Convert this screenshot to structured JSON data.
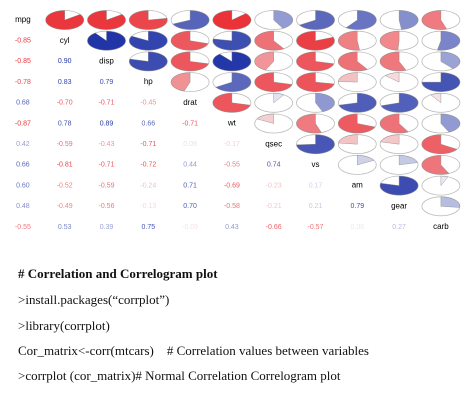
{
  "chart_data": {
    "type": "correlogram",
    "variables": [
      "mpg",
      "cyl",
      "disp",
      "hp",
      "drat",
      "wt",
      "qsec",
      "vs",
      "am",
      "gear",
      "carb"
    ],
    "values": [
      [
        -0.85
      ],
      [
        -0.85,
        0.9
      ],
      [
        -0.78,
        0.83,
        0.79
      ],
      [
        0.68,
        -0.7,
        -0.71,
        -0.45
      ],
      [
        -0.87,
        0.78,
        0.89,
        0.66,
        -0.71
      ],
      [
        0.42,
        -0.59,
        -0.43,
        -0.71,
        0.09,
        -0.17
      ],
      [
        0.66,
        -0.81,
        -0.71,
        -0.72,
        0.44,
        -0.55,
        0.74
      ],
      [
        0.6,
        -0.52,
        -0.59,
        -0.24,
        0.71,
        -0.69,
        -0.23,
        0.17
      ],
      [
        0.48,
        -0.49,
        -0.56,
        -0.13,
        0.7,
        -0.58,
        -0.21,
        0.21,
        0.79
      ],
      [
        -0.55,
        0.53,
        0.39,
        0.75,
        -0.09,
        0.43,
        -0.66,
        -0.57,
        0.06,
        0.27
      ]
    ],
    "value_labels": [
      [
        "-0.85"
      ],
      [
        "-0.85",
        "0.90"
      ],
      [
        "-0.78",
        "0.83",
        "0.79"
      ],
      [
        "0.68",
        "-0.70",
        "-0.71",
        "-0.45"
      ],
      [
        "-0.87",
        "0.78",
        "0.89",
        "0.66",
        "-0.71"
      ],
      [
        "0.42",
        "-0.59",
        "-0.43",
        "-0.71",
        "0.09",
        "-0.17"
      ],
      [
        "0.66",
        "-0.81",
        "-0.71",
        "-0.72",
        "0.44",
        "-0.55",
        "0.74"
      ],
      [
        "0.60",
        "-0.52",
        "-0.59",
        "-0.24",
        "0.71",
        "-0.69",
        "-0.23",
        "0.17"
      ],
      [
        "0.48",
        "-0.49",
        "-0.56",
        "-0.13",
        "0.70",
        "-0.58",
        "-0.21",
        "0.21",
        "0.79"
      ],
      [
        "-0.55",
        "0.53",
        "0.39",
        "0.75",
        "-0.09",
        "0.43",
        "-0.66",
        "-0.57",
        "0.06",
        "0.27"
      ]
    ],
    "positive_color": "#0a1f9e",
    "negative_color": "#e8141c"
  },
  "document": {
    "heading": "# Correlation and Correlogram plot",
    "lines": [
      ">install.packages(“corrplot”)",
      ">library(corrplot)",
      "Cor_matrix<-corr(mtcars)    # Correlation values between variables",
      ">corrplot (cor_matrix)# Normal Correlation Correlogram plot"
    ]
  }
}
